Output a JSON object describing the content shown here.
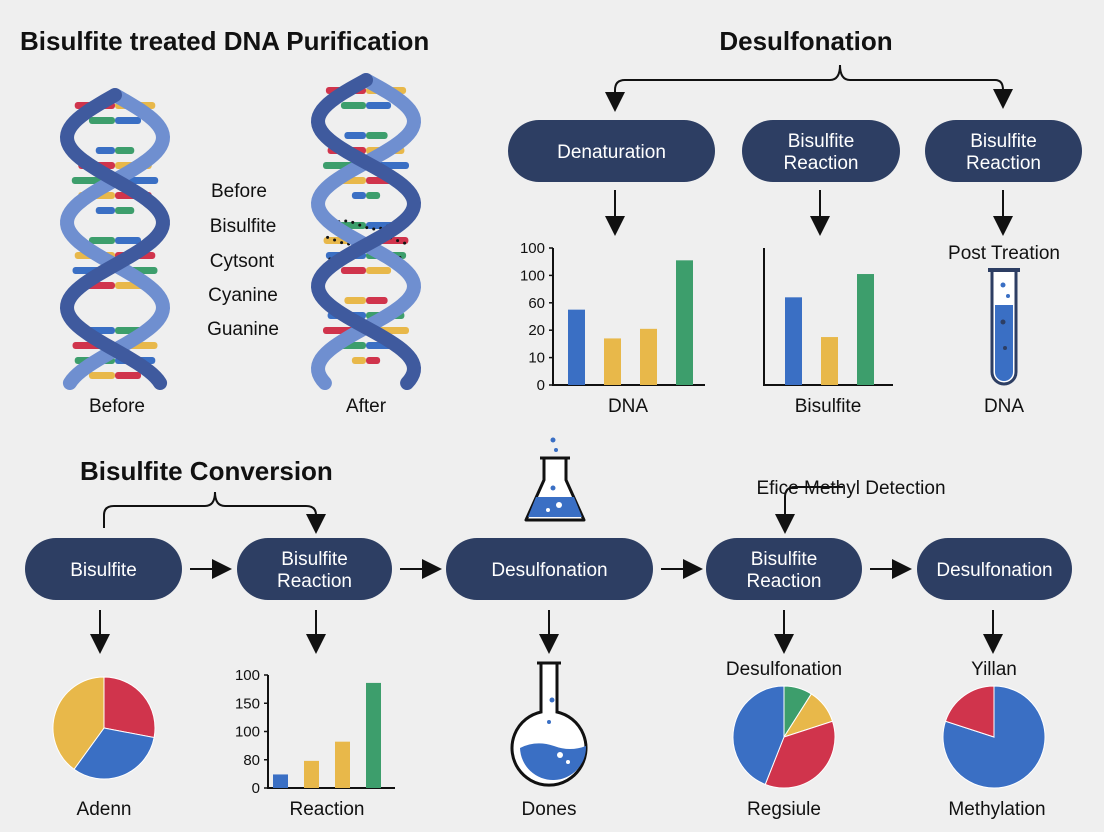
{
  "colors": {
    "navy": "#2d3e63",
    "blue": "#3a6fc4",
    "yellow": "#e8b84a",
    "green": "#3d9e6c",
    "red": "#d0344c",
    "helix": "#6f8fd0"
  },
  "top_left": {
    "title": "Bisulfite treated DNA Purification",
    "before_label": "Before",
    "after_label": "After",
    "legend": [
      "Before",
      "Bisulfite",
      "Cytsont",
      "Cyanine",
      "Guanine"
    ]
  },
  "top_right": {
    "title": "Desulfonation",
    "steps": [
      "Denaturation",
      "Bisulfite\nReaction",
      "Bisulfite\nReaction"
    ],
    "post_label": "Post Treation",
    "tube_label": "DNA"
  },
  "bottom": {
    "title": "Bisulfite Conversion",
    "detect_label": "Efice Methyl Detection",
    "steps": [
      "Bisulfite",
      "Bisulfite\nReaction",
      "Desulfonation",
      "Bisulfite\nReaction",
      "Desulfonation"
    ],
    "flask_label": "Dones",
    "pie2_title": "Desulfonation",
    "pie3_title": "Yillan"
  },
  "chart_data": [
    {
      "type": "bar",
      "xlabel": "DNA",
      "ticks": [
        "100",
        "100",
        "60",
        "20",
        "10",
        "0"
      ],
      "values_pct": [
        55,
        34,
        41,
        91
      ],
      "colors": [
        "blue",
        "yellow",
        "yellow",
        "green"
      ]
    },
    {
      "type": "bar",
      "xlabel": "Bisulfite",
      "ticks": [],
      "values_pct": [
        64,
        35,
        81
      ],
      "colors": [
        "blue",
        "yellow",
        "green"
      ]
    },
    {
      "type": "bar",
      "xlabel": "Reaction",
      "ticks": [
        "100",
        "150",
        "100",
        "80",
        "0"
      ],
      "values_pct": [
        12,
        24,
        41,
        93
      ],
      "colors": [
        "blue",
        "yellow",
        "yellow",
        "green"
      ]
    },
    {
      "type": "pie",
      "label": "Adenn",
      "slices": [
        {
          "color": "red",
          "pct": 28
        },
        {
          "color": "blue",
          "pct": 32
        },
        {
          "color": "yellow",
          "pct": 40
        }
      ]
    },
    {
      "type": "pie",
      "label": "Regsiule",
      "slices": [
        {
          "color": "green",
          "pct": 9
        },
        {
          "color": "yellow",
          "pct": 11
        },
        {
          "color": "red",
          "pct": 36
        },
        {
          "color": "blue",
          "pct": 44
        }
      ]
    },
    {
      "type": "pie",
      "label": "Methylation",
      "slices": [
        {
          "color": "blue",
          "pct": 80
        },
        {
          "color": "red",
          "pct": 20
        }
      ]
    }
  ]
}
